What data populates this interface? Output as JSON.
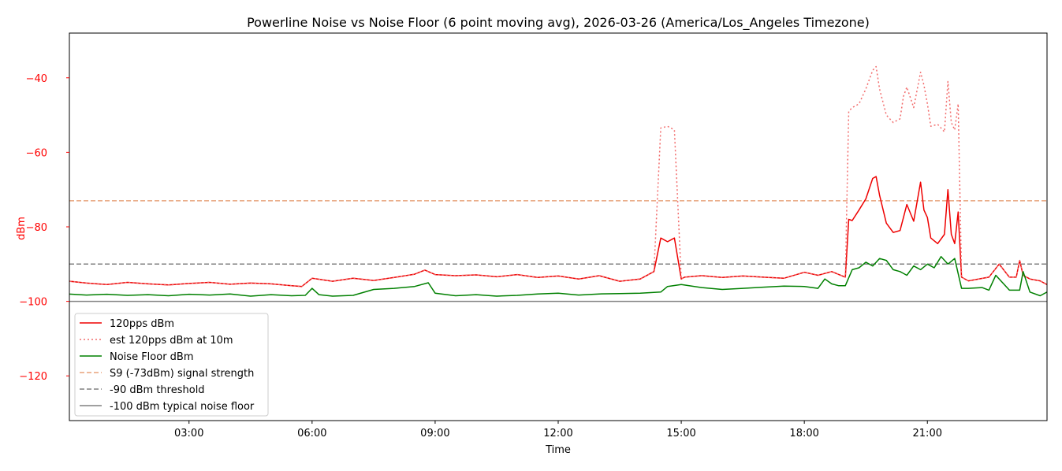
{
  "chart_data": {
    "type": "line",
    "title": "Powerline Noise vs Noise Floor (6 point moving avg), 2026-03-26 (America/Los_Angeles Timezone)",
    "xlabel": "Time",
    "ylabel": "dBm",
    "x_ticks": [
      "03:00",
      "06:00",
      "09:00",
      "12:00",
      "15:00",
      "18:00",
      "21:00"
    ],
    "y_ticks": [
      -40,
      -60,
      -80,
      -100,
      -120
    ],
    "xlim": [
      "00:05",
      "23:55"
    ],
    "ylim": [
      -132,
      -28
    ],
    "x_unit": "time of day",
    "grid": false,
    "legend_position": "lower-left",
    "colors": {
      "signal": "#ee0000",
      "est": "#f26b6b",
      "noise_floor": "#008000",
      "s9": "#e8a27a",
      "threshold": "#808080",
      "typical_floor": "#808080",
      "ylabel_color": "#ff0000"
    },
    "series": [
      {
        "name": "120pps dBm",
        "style": "solid",
        "color": "#ee0000",
        "x": [
          "00:00",
          "00:30",
          "01:00",
          "01:30",
          "02:00",
          "02:30",
          "03:00",
          "03:30",
          "04:00",
          "04:30",
          "05:00",
          "05:30",
          "05:45",
          "06:00",
          "06:30",
          "07:00",
          "07:30",
          "08:00",
          "08:30",
          "08:45",
          "09:00",
          "09:30",
          "10:00",
          "10:30",
          "11:00",
          "11:30",
          "12:00",
          "12:30",
          "13:00",
          "13:30",
          "14:00",
          "14:20",
          "14:30",
          "14:40",
          "14:50",
          "15:00",
          "15:05",
          "15:30",
          "16:00",
          "16:30",
          "17:00",
          "17:30",
          "18:00",
          "18:20",
          "18:40",
          "19:00",
          "19:05",
          "19:10",
          "19:20",
          "19:30",
          "19:40",
          "19:45",
          "19:50",
          "20:00",
          "20:10",
          "20:20",
          "20:25",
          "20:30",
          "20:40",
          "20:50",
          "20:55",
          "21:00",
          "21:05",
          "21:15",
          "21:25",
          "21:30",
          "21:35",
          "21:40",
          "21:45",
          "21:50",
          "22:00",
          "22:15",
          "22:30",
          "22:45",
          "23:00",
          "23:10",
          "23:15",
          "23:20",
          "23:30",
          "23:45",
          "23:55"
        ],
        "y": [
          -94.5,
          -95.1,
          -95.5,
          -94.9,
          -95.3,
          -95.6,
          -95.2,
          -94.9,
          -95.4,
          -95.1,
          -95.3,
          -95.8,
          -96.0,
          -93.8,
          -94.6,
          -93.8,
          -94.4,
          -93.6,
          -92.7,
          -91.6,
          -92.8,
          -93.1,
          -92.9,
          -93.4,
          -92.8,
          -93.6,
          -93.2,
          -94.0,
          -93.1,
          -94.6,
          -94.0,
          -92.0,
          -83.0,
          -84.0,
          -83.0,
          -94.0,
          -93.5,
          -93.1,
          -93.6,
          -93.2,
          -93.5,
          -93.8,
          -92.2,
          -93.0,
          -92.0,
          -93.5,
          -78.0,
          -78.3,
          -75.5,
          -72.5,
          -67.0,
          -66.5,
          -71.5,
          -79.0,
          -81.5,
          -81.0,
          -77.5,
          -74.0,
          -78.5,
          -68.0,
          -75.5,
          -77.5,
          -83.0,
          -84.5,
          -82.0,
          -70.0,
          -82.0,
          -84.5,
          -76.0,
          -93.5,
          -94.5,
          -94.0,
          -93.5,
          -90.0,
          -93.5,
          -93.5,
          -89.0,
          -93.0,
          -94.0,
          -94.5,
          -95.5
        ]
      },
      {
        "name": "est 120pps dBm at 10m",
        "style": "dotted",
        "color": "#f26b6b",
        "x": [
          "00:00",
          "00:30",
          "01:00",
          "01:30",
          "02:00",
          "02:30",
          "03:00",
          "03:30",
          "04:00",
          "04:30",
          "05:00",
          "05:30",
          "05:45",
          "06:00",
          "06:30",
          "07:00",
          "07:30",
          "08:00",
          "08:30",
          "08:45",
          "09:00",
          "09:30",
          "10:00",
          "10:30",
          "11:00",
          "11:30",
          "12:00",
          "12:30",
          "13:00",
          "13:30",
          "14:00",
          "14:20",
          "14:30",
          "14:40",
          "14:50",
          "15:00",
          "15:05",
          "15:30",
          "16:00",
          "16:30",
          "17:00",
          "17:30",
          "18:00",
          "18:20",
          "18:40",
          "19:00",
          "19:05",
          "19:10",
          "19:20",
          "19:30",
          "19:40",
          "19:45",
          "19:50",
          "20:00",
          "20:10",
          "20:20",
          "20:25",
          "20:30",
          "20:40",
          "20:50",
          "20:55",
          "21:00",
          "21:05",
          "21:15",
          "21:25",
          "21:30",
          "21:35",
          "21:40",
          "21:45",
          "21:50",
          "22:00",
          "22:15",
          "22:30",
          "22:45",
          "23:00",
          "23:10",
          "23:15",
          "23:20",
          "23:30",
          "23:45",
          "23:55"
        ],
        "y": [
          -94.5,
          -95.1,
          -95.5,
          -94.9,
          -95.3,
          -95.6,
          -95.2,
          -94.9,
          -95.4,
          -95.1,
          -95.3,
          -95.8,
          -96.0,
          -93.8,
          -94.6,
          -93.8,
          -94.4,
          -93.6,
          -92.7,
          -91.6,
          -92.8,
          -93.1,
          -92.9,
          -93.4,
          -92.8,
          -93.6,
          -93.2,
          -94.0,
          -93.1,
          -94.6,
          -94.0,
          -92.0,
          -53.5,
          -53.0,
          -54.0,
          -94.0,
          -93.5,
          -93.1,
          -93.6,
          -93.2,
          -93.5,
          -93.8,
          -92.2,
          -93.0,
          -92.0,
          -93.5,
          -49.0,
          -48.0,
          -47.0,
          -43.0,
          -38.0,
          -37.0,
          -43.0,
          -50.0,
          -52.0,
          -51.0,
          -45.0,
          -42.5,
          -48.0,
          -38.5,
          -42.0,
          -47.0,
          -53.0,
          -52.5,
          -54.5,
          -41.0,
          -52.0,
          -54.0,
          -47.0,
          -93.5,
          -94.5,
          -94.0,
          -93.5,
          -90.0,
          -93.5,
          -93.5,
          -89.0,
          -93.0,
          -94.0,
          -94.5,
          -95.5
        ]
      },
      {
        "name": "Noise Floor dBm",
        "style": "solid",
        "color": "#008000",
        "x": [
          "00:00",
          "00:30",
          "01:00",
          "01:30",
          "02:00",
          "02:30",
          "03:00",
          "03:30",
          "04:00",
          "04:30",
          "05:00",
          "05:30",
          "05:50",
          "06:00",
          "06:10",
          "06:30",
          "07:00",
          "07:30",
          "08:00",
          "08:30",
          "08:50",
          "09:00",
          "09:30",
          "10:00",
          "10:30",
          "11:00",
          "11:30",
          "12:00",
          "12:30",
          "13:00",
          "13:30",
          "14:00",
          "14:30",
          "14:40",
          "15:00",
          "15:30",
          "16:00",
          "16:30",
          "17:00",
          "17:30",
          "18:00",
          "18:20",
          "18:30",
          "18:40",
          "18:50",
          "19:00",
          "19:10",
          "19:20",
          "19:30",
          "19:40",
          "19:50",
          "20:00",
          "20:10",
          "20:20",
          "20:30",
          "20:40",
          "20:50",
          "21:00",
          "21:10",
          "21:20",
          "21:30",
          "21:40",
          "21:50",
          "22:00",
          "22:20",
          "22:30",
          "22:40",
          "23:00",
          "23:15",
          "23:20",
          "23:30",
          "23:45",
          "23:55"
        ],
        "y": [
          -98.0,
          -98.3,
          -98.1,
          -98.4,
          -98.2,
          -98.5,
          -98.1,
          -98.3,
          -98.0,
          -98.6,
          -98.2,
          -98.5,
          -98.4,
          -96.5,
          -98.2,
          -98.6,
          -98.4,
          -96.8,
          -96.5,
          -96.0,
          -95.0,
          -97.8,
          -98.5,
          -98.2,
          -98.6,
          -98.4,
          -98.0,
          -97.8,
          -98.3,
          -98.0,
          -97.9,
          -97.8,
          -97.5,
          -96.0,
          -95.5,
          -96.3,
          -96.8,
          -96.5,
          -96.2,
          -95.9,
          -96.0,
          -96.5,
          -94.0,
          -95.3,
          -95.8,
          -95.8,
          -91.5,
          -91.0,
          -89.5,
          -90.5,
          -88.5,
          -89.0,
          -91.5,
          -92.0,
          -93.0,
          -90.5,
          -91.5,
          -90.0,
          -91.0,
          -88.0,
          -90.0,
          -88.5,
          -96.5,
          -96.5,
          -96.3,
          -97.0,
          -93.0,
          -97.0,
          -97.0,
          -92.0,
          -97.5,
          -98.5,
          -97.5
        ]
      }
    ],
    "reference_lines": [
      {
        "name": "S9 (-73dBm) signal strength",
        "y": -73,
        "style": "dashed",
        "color": "#e8a27a"
      },
      {
        "name": "-90 dBm threshold",
        "y": -90,
        "style": "dashed",
        "color": "#808080"
      },
      {
        "name": "-100 dBm typical noise floor",
        "y": -100,
        "style": "solid",
        "color": "#808080"
      }
    ]
  }
}
